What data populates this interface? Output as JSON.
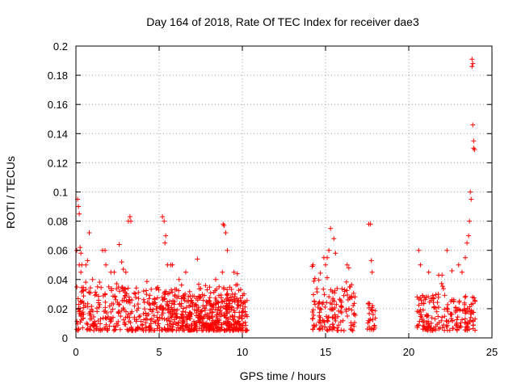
{
  "chart_data": {
    "type": "scatter",
    "title": "Day 164 of 2018, Rate Of TEC Index for receiver dae3",
    "xlabel": "GPS time / hours",
    "ylabel": "ROTI / TECUs",
    "xlim": [
      0,
      25
    ],
    "ylim": [
      0,
      0.2
    ],
    "x_ticks": [
      "0",
      "5",
      "10",
      "15",
      "20",
      "25"
    ],
    "y_ticks": [
      "0",
      "0.02",
      "0.04",
      "0.06",
      "0.08",
      "0.1",
      "0.12",
      "0.14",
      "0.16",
      "0.18",
      "0.2"
    ],
    "grid": true,
    "marker": "plus",
    "color": "#ff0000",
    "clusters": [
      {
        "x": [
          0.0,
          10.2
        ],
        "y_base": [
          0.005,
          0.035
        ]
      },
      {
        "x": [
          5.1,
          10.3
        ],
        "y_base": [
          0.005,
          0.03
        ]
      },
      {
        "x": [
          14.2,
          16.8
        ],
        "y_base": [
          0.005,
          0.035
        ]
      },
      {
        "x": [
          17.5,
          18.0
        ],
        "y_base": [
          0.005,
          0.025
        ]
      },
      {
        "x": [
          20.5,
          24.0
        ],
        "y_base": [
          0.005,
          0.03
        ]
      }
    ],
    "x": [
      0.05,
      0.1,
      0.15,
      0.2,
      0.2,
      0.25,
      0.3,
      0.3,
      0.35,
      0.6,
      0.7,
      0.8,
      1.0,
      1.3,
      1.6,
      1.75,
      1.8,
      2.1,
      2.3,
      2.6,
      2.75,
      2.85,
      3.0,
      3.15,
      3.25,
      3.3,
      5.2,
      5.3,
      5.35,
      5.4,
      5.5,
      5.7,
      5.8,
      6.2,
      6.6,
      7.3,
      8.4,
      8.6,
      8.8,
      8.85,
      8.9,
      9.0,
      9.1,
      9.5,
      9.7,
      14.2,
      14.25,
      14.9,
      15.0,
      15.1,
      15.2,
      15.3,
      15.5,
      15.6,
      16.3,
      16.4,
      17.6,
      17.7,
      17.75,
      17.8,
      20.6,
      20.7,
      21.2,
      21.8,
      22.0,
      22.3,
      22.6,
      23.0,
      23.2,
      23.4,
      23.5,
      23.6,
      23.65,
      23.7,
      23.75,
      23.8,
      23.8,
      23.85,
      23.85,
      23.9,
      23.9,
      23.95
    ],
    "y": [
      0.06,
      0.095,
      0.09,
      0.085,
      0.05,
      0.062,
      0.058,
      0.045,
      0.05,
      0.05,
      0.053,
      0.072,
      0.04,
      0.035,
      0.06,
      0.06,
      0.05,
      0.045,
      0.045,
      0.064,
      0.052,
      0.047,
      0.045,
      0.08,
      0.083,
      0.08,
      0.083,
      0.08,
      0.065,
      0.07,
      0.05,
      0.05,
      0.05,
      0.04,
      0.045,
      0.054,
      0.04,
      0.035,
      0.045,
      0.078,
      0.077,
      0.072,
      0.06,
      0.045,
      0.044,
      0.049,
      0.05,
      0.055,
      0.05,
      0.055,
      0.06,
      0.075,
      0.068,
      0.058,
      0.05,
      0.048,
      0.078,
      0.078,
      0.053,
      0.045,
      0.06,
      0.05,
      0.045,
      0.043,
      0.043,
      0.06,
      0.046,
      0.05,
      0.045,
      0.055,
      0.065,
      0.07,
      0.08,
      0.1,
      0.095,
      0.191,
      0.186,
      0.188,
      0.146,
      0.135,
      0.13,
      0.129
    ]
  }
}
